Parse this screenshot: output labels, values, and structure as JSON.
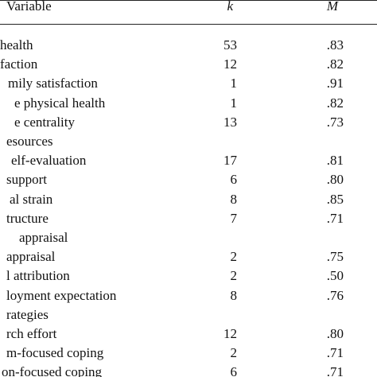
{
  "header": {
    "variable": "Variable",
    "k": "k",
    "m": "M"
  },
  "rows": [
    {
      "label": "health",
      "k": 53,
      "m": ".83"
    },
    {
      "label": "faction",
      "k": 12,
      "m": ".82"
    },
    {
      "label": "mily satisfaction",
      "k": 1,
      "m": ".91"
    },
    {
      "label": "e physical health",
      "k": 1,
      "m": ".82"
    },
    {
      "label": "e centrality",
      "k": 13,
      "m": ".73"
    },
    {
      "label": "esources"
    },
    {
      "label": "elf-evaluation",
      "k": 17,
      "m": ".81"
    },
    {
      "label": "support",
      "k": 6,
      "m": ".80"
    },
    {
      "label": "al strain",
      "k": 8,
      "m": ".85"
    },
    {
      "label": "tructure",
      "k": 7,
      "m": ".71"
    },
    {
      "label": "appraisal"
    },
    {
      "label": "appraisal",
      "k": 2,
      "m": ".75"
    },
    {
      "label": "l attribution",
      "k": 2,
      "m": ".50"
    },
    {
      "label": "loyment expectation",
      "k": 8,
      "m": ".76"
    },
    {
      "label": "rategies"
    },
    {
      "label": "rch effort",
      "k": 12,
      "m": ".80"
    },
    {
      "label": "m-focused coping",
      "k": 2,
      "m": ".71"
    },
    {
      "label": "on-focused coping",
      "k": 6,
      "m": ".71"
    }
  ]
}
